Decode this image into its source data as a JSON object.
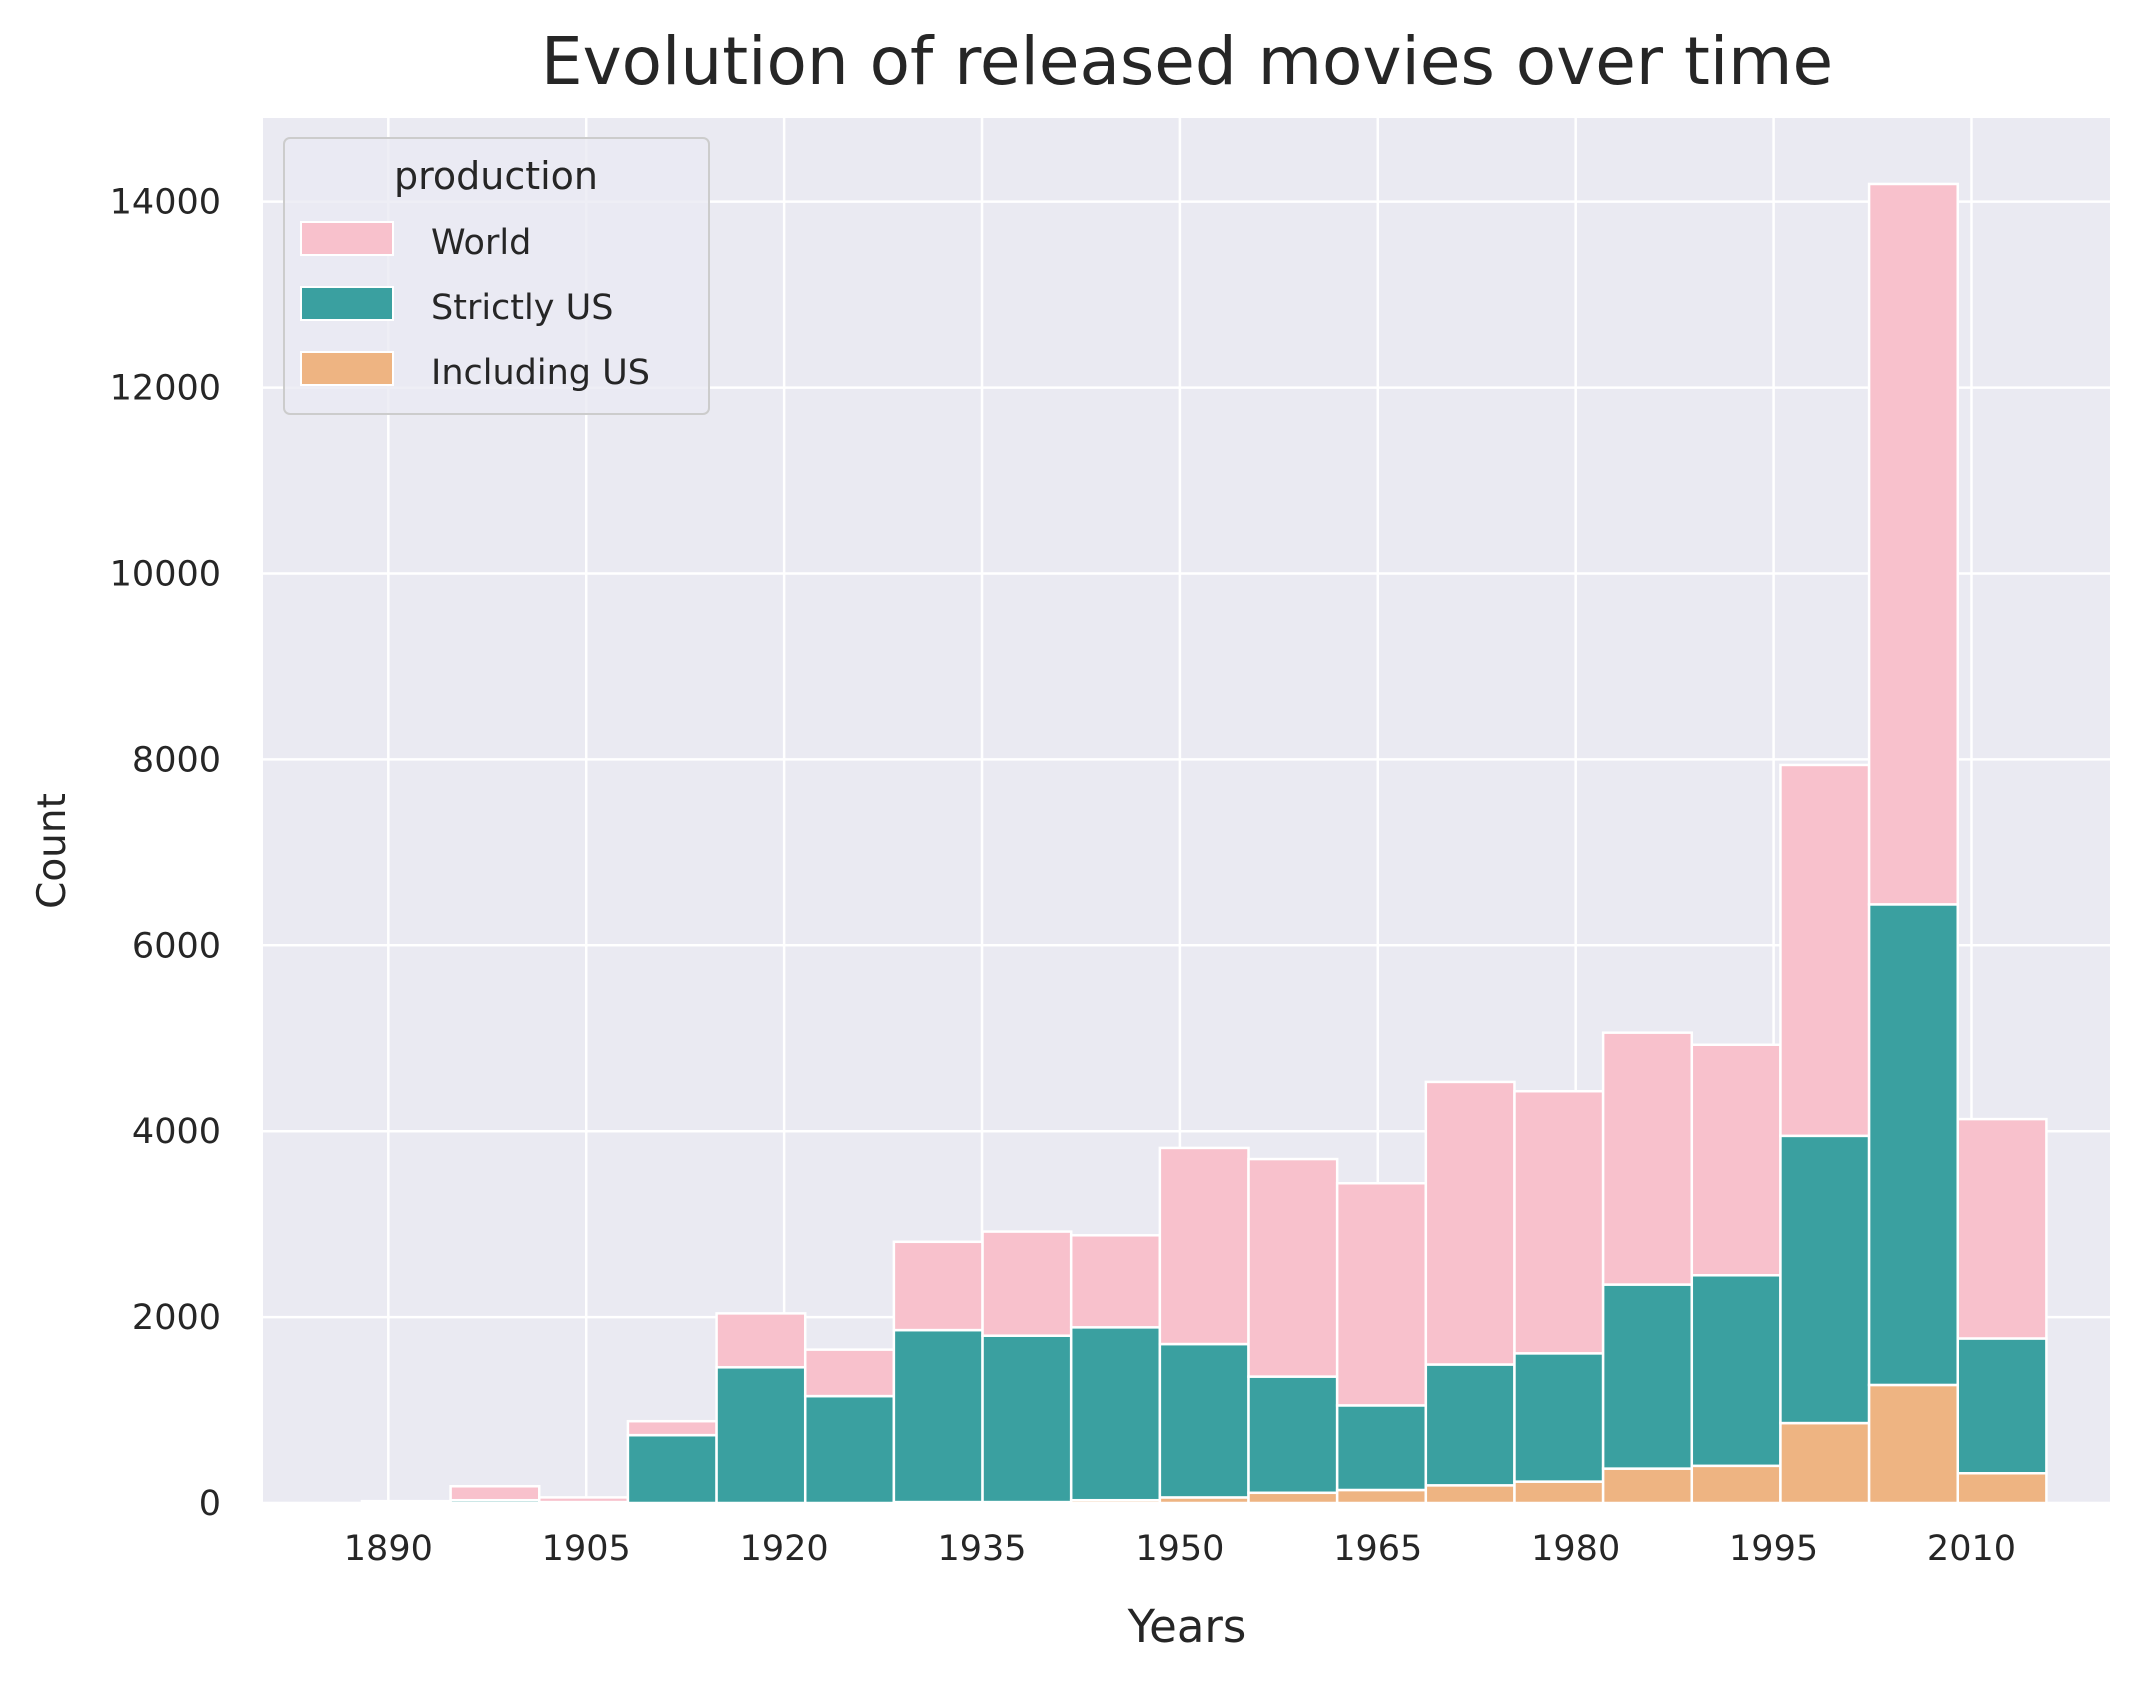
{
  "chart_data": {
    "type": "bar",
    "stacked": true,
    "title": "Evolution of released movies over time",
    "xlabel": "Years",
    "ylabel": "Count",
    "xlim": [
      1880.5,
      2020.5
    ],
    "ylim": [
      0,
      14900
    ],
    "xticks": [
      1890,
      1905,
      1920,
      1935,
      1950,
      1965,
      1980,
      1995,
      2010
    ],
    "yticks": [
      0,
      2000,
      4000,
      6000,
      8000,
      10000,
      12000,
      14000
    ],
    "grid": true,
    "legend": {
      "title": "production",
      "placement": "top-left"
    },
    "bin_edges": [
      1888,
      1894.72,
      1901.44,
      1908.16,
      1914.88,
      1921.6,
      1928.32,
      1935.04,
      1941.76,
      1948.48,
      1955.2,
      1961.92,
      1968.64,
      1975.36,
      1982.08,
      1988.8,
      1995.52,
      2002.24,
      2008.96,
      2015.68
    ],
    "series": [
      {
        "name": "Including US",
        "color": "#eeb482",
        "values": [
          0,
          0,
          0,
          0,
          0,
          0,
          10,
          10,
          30,
          60,
          110,
          140,
          190,
          230,
          370,
          400,
          860,
          1270,
          320
        ]
      },
      {
        "name": "Strictly US",
        "color": "#3aa0a0",
        "values": [
          0,
          30,
          10,
          730,
          1460,
          1150,
          1850,
          1790,
          1860,
          1650,
          1250,
          910,
          1300,
          1380,
          1980,
          2050,
          3090,
          5170,
          1450
        ]
      },
      {
        "name": "World",
        "color": "#f8c1cc",
        "values": [
          20,
          150,
          50,
          150,
          580,
          500,
          950,
          1120,
          990,
          2110,
          2340,
          2390,
          3040,
          2820,
          2710,
          2480,
          3990,
          7750,
          2360
        ]
      }
    ]
  }
}
